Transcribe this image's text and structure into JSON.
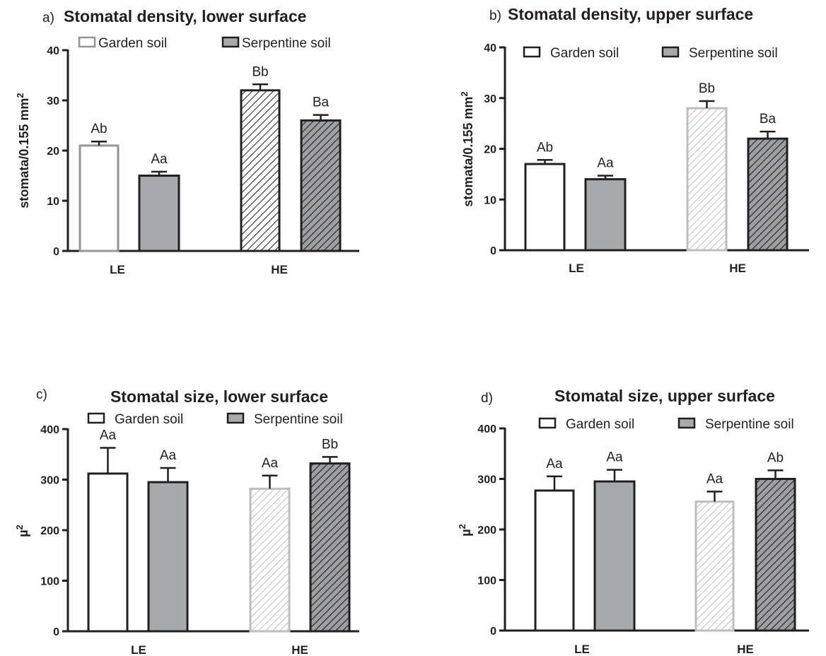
{
  "colors": {
    "axis": "#231f20",
    "garden_fill": "#ffffff",
    "serpentine_fill": "#a7a9ac",
    "hatch_light": "#bcbec0",
    "hatch_dark": "#231f20",
    "hatch_dark_bg": "#9d9fa2"
  },
  "chart_data": [
    {
      "type": "bar",
      "panel_letter": "a)",
      "title": "Stomatal density, lower surface",
      "ylabel": "stomata/0.155 mm",
      "ylabel_sup": "2",
      "ylim": [
        0,
        40
      ],
      "yticks": [
        "0",
        "10",
        "20",
        "30",
        "40"
      ],
      "legend": [
        "Garden soil",
        "Serpentine soil"
      ],
      "legend_position": "top",
      "categories": [
        "LE",
        "HE"
      ],
      "series": [
        {
          "name": "Garden soil",
          "values": [
            21,
            32
          ],
          "errors": [
            0.8,
            1.2
          ],
          "labels": [
            "Ab",
            "Bb"
          ]
        },
        {
          "name": "Serpentine soil",
          "values": [
            15,
            26
          ],
          "errors": [
            0.8,
            1.1
          ],
          "labels": [
            "Aa",
            "Ba"
          ]
        }
      ]
    },
    {
      "type": "bar",
      "panel_letter": "b)",
      "title": "Stomatal density, upper surface",
      "ylabel": "stomata/0.155 mm",
      "ylabel_sup": "2",
      "ylim": [
        0,
        40
      ],
      "yticks": [
        "0",
        "10",
        "20",
        "30",
        "40"
      ],
      "legend": [
        "Garden soil",
        "Serpentine soil"
      ],
      "legend_position": "top",
      "categories": [
        "LE",
        "HE"
      ],
      "series": [
        {
          "name": "Garden soil",
          "values": [
            17,
            28
          ],
          "errors": [
            0.8,
            1.4
          ],
          "labels": [
            "Ab",
            "Bb"
          ]
        },
        {
          "name": "Serpentine soil",
          "values": [
            14,
            22
          ],
          "errors": [
            0.7,
            1.4
          ],
          "labels": [
            "Aa",
            "Ba"
          ]
        }
      ]
    },
    {
      "type": "bar",
      "panel_letter": "c)",
      "title": "Stomatal size, lower surface",
      "ylabel": "µ",
      "ylabel_sup": "2",
      "ylim": [
        0,
        400
      ],
      "yticks": [
        "0",
        "100",
        "200",
        "300",
        "400"
      ],
      "legend": [
        "Garden soil",
        "Serpentine soil"
      ],
      "legend_position": "top",
      "categories": [
        "LE",
        "HE"
      ],
      "series": [
        {
          "name": "Garden soil",
          "values": [
            312,
            282
          ],
          "errors": [
            51,
            26
          ],
          "labels": [
            "Aa",
            "Aa"
          ]
        },
        {
          "name": "Serpentine soil",
          "values": [
            295,
            332
          ],
          "errors": [
            28,
            13
          ],
          "labels": [
            "Aa",
            "Bb"
          ]
        }
      ]
    },
    {
      "type": "bar",
      "panel_letter": "d)",
      "title": "Stomatal size, upper surface",
      "ylabel": "µ",
      "ylabel_sup": "2",
      "ylim": [
        0,
        400
      ],
      "yticks": [
        "0",
        "100",
        "200",
        "300",
        "400"
      ],
      "legend": [
        "Garden soil",
        "Serpentine soil"
      ],
      "legend_position": "top",
      "categories": [
        "LE",
        "HE"
      ],
      "series": [
        {
          "name": "Garden soil",
          "values": [
            277,
            255
          ],
          "errors": [
            28,
            20
          ],
          "labels": [
            "Aa",
            "Aa"
          ]
        },
        {
          "name": "Serpentine soil",
          "values": [
            295,
            300
          ],
          "errors": [
            23,
            17
          ],
          "labels": [
            "Aa",
            "Ab"
          ]
        }
      ]
    }
  ]
}
